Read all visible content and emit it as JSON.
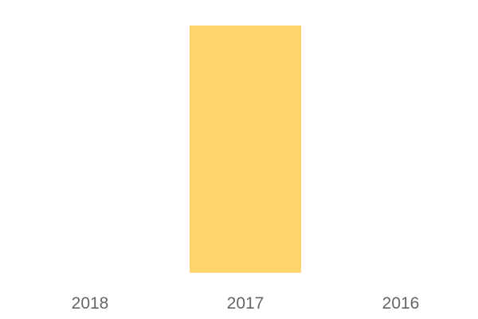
{
  "chart_data": {
    "type": "bar",
    "categories": [
      "2018",
      "2017",
      "2016"
    ],
    "values": [
      0,
      1,
      0
    ],
    "title": "",
    "xlabel": "",
    "ylabel": "",
    "ylim": [
      0,
      1
    ],
    "grid": false,
    "bar_color": "#FFD56C",
    "tick_color": "#666666"
  }
}
